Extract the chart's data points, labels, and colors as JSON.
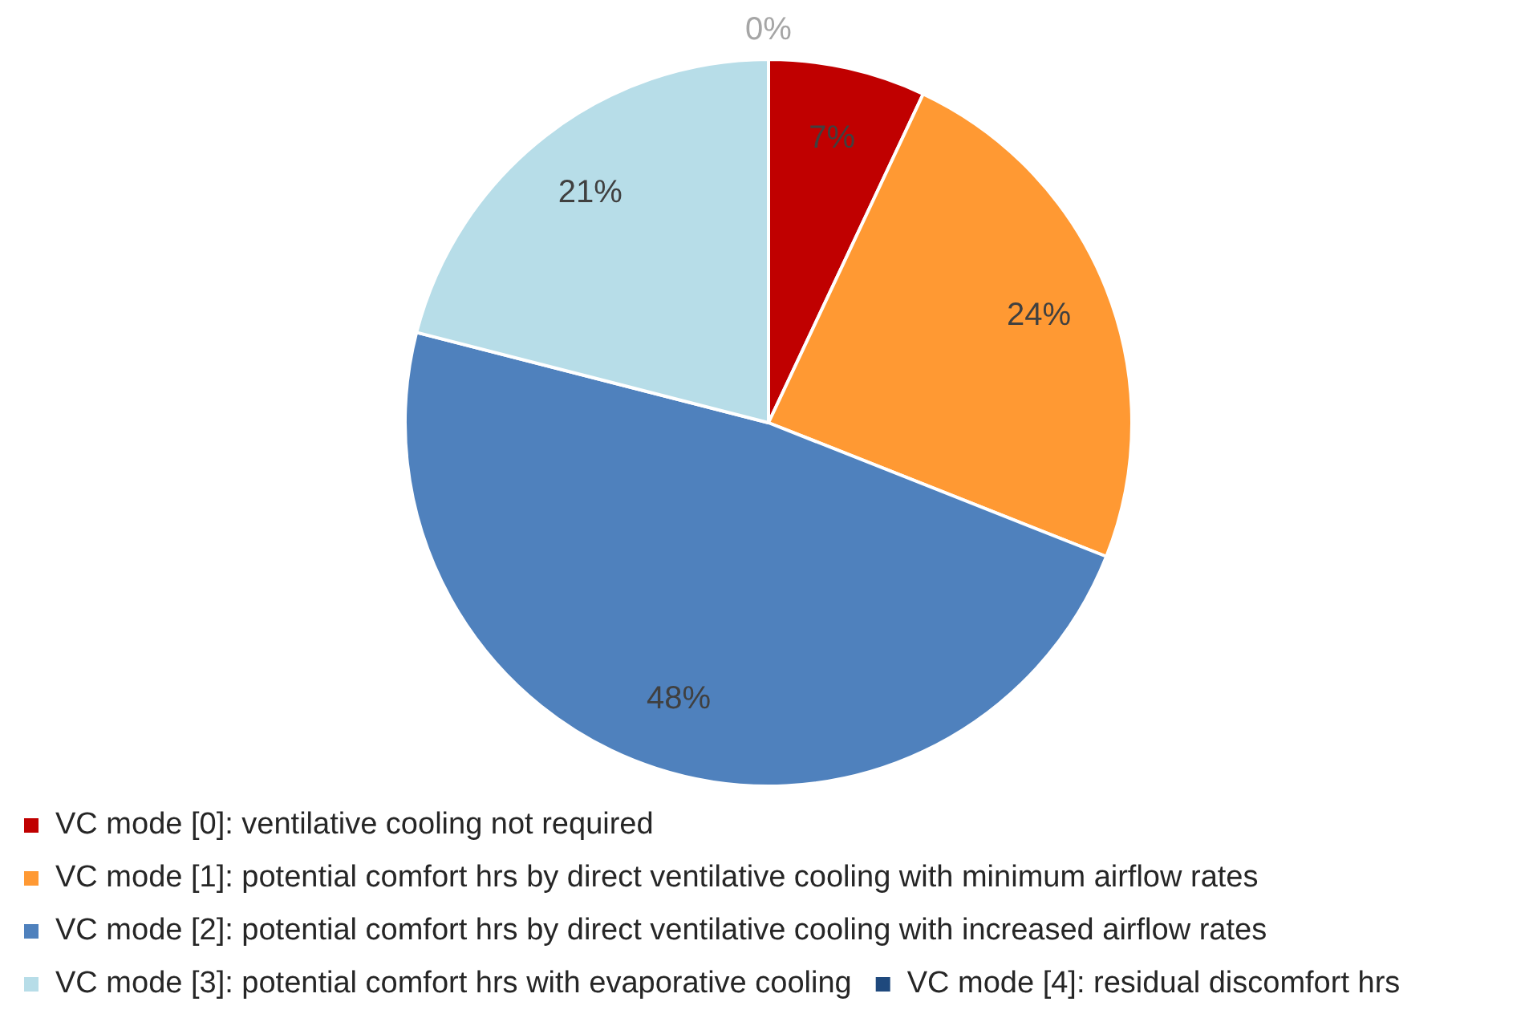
{
  "chart_data": {
    "type": "pie",
    "categories": [
      "VC mode [0]: ventilative cooling not required",
      "VC mode [1]: potential comfort hrs by direct ventilative cooling with minimum airflow rates",
      "VC mode [2]: potential comfort hrs by direct ventilative cooling with increased airflow rates",
      "VC mode [3]: potential comfort hrs with evaporative cooling",
      "VC mode [4]: residual discomfort hrs"
    ],
    "values": [
      7,
      24,
      48,
      21,
      0
    ],
    "colors": [
      "#c00000",
      "#ff9933",
      "#4f81bd",
      "#b7dde8",
      "#1f497d"
    ],
    "value_labels": [
      "7%",
      "24%",
      "48%",
      "21%",
      "0%"
    ],
    "legend": "bottom"
  }
}
